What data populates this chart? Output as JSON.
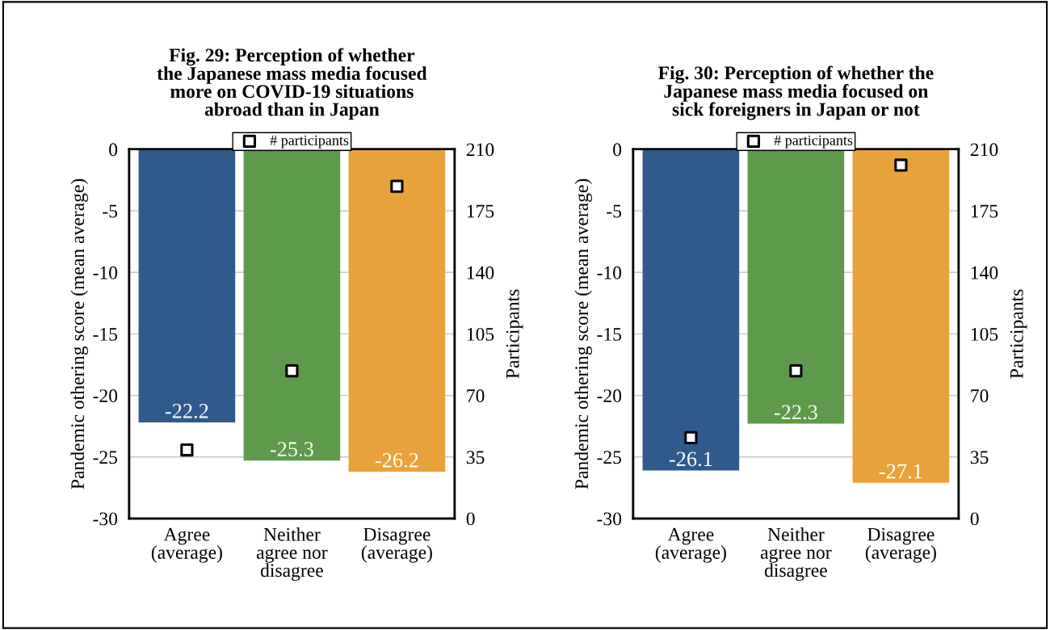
{
  "chart_data": [
    {
      "type": "bar",
      "title": "Fig. 29: Perception of whether\nthe Japanese mass media focused\nmore on COVID-19 situations\nabroad than in Japan",
      "ylabel": "Pandemic othering score (mean average)",
      "y2label": "Participants",
      "categories": [
        "Agree\n(average)",
        "Neither\nagree nor\ndisagree",
        "Disagree\n(average)"
      ],
      "series": [
        {
          "colors": [
            "#2e5a8c",
            "#5e9a4b",
            "#e8a23c"
          ],
          "values": [
            -22.2,
            -25.3,
            -26.2
          ],
          "value_labels": [
            "-22.2",
            "-25.3",
            "-26.2"
          ]
        },
        {
          "type": "scatter",
          "name": "# participants",
          "axis": "y2",
          "color": "#000000",
          "marker": "square",
          "values": [
            39,
            84,
            189
          ]
        }
      ],
      "ylim": [
        -30,
        0
      ],
      "yticks": [
        -30,
        -25,
        -20,
        -15,
        -10,
        -5,
        0
      ],
      "y2lim": [
        0,
        210
      ],
      "y2ticks": [
        0,
        35,
        70,
        105,
        140,
        175,
        210
      ],
      "grid": "y",
      "legend": "top"
    },
    {
      "type": "bar",
      "title": "Fig. 30: Perception of whether the\nJapanese mass media focused on\nsick foreigners in Japan or not",
      "ylabel": "Pandemic othering score (mean average)",
      "y2label": "Participants",
      "categories": [
        "Agree\n(average)",
        "Neither\nagree nor\ndisagree",
        "Disagree\n(average)"
      ],
      "series": [
        {
          "colors": [
            "#2e5a8c",
            "#5e9a4b",
            "#e8a23c"
          ],
          "values": [
            -26.1,
            -22.3,
            -27.1
          ],
          "value_labels": [
            "-26.1",
            "-22.3",
            "-27.1"
          ]
        },
        {
          "type": "scatter",
          "name": "# participants",
          "axis": "y2",
          "color": "#000000",
          "marker": "square",
          "values": [
            46,
            84,
            201
          ]
        }
      ],
      "ylim": [
        -30,
        0
      ],
      "yticks": [
        -30,
        -25,
        -20,
        -15,
        -10,
        -5,
        0
      ],
      "y2lim": [
        0,
        210
      ],
      "y2ticks": [
        0,
        35,
        70,
        105,
        140,
        175,
        210
      ],
      "grid": "y",
      "legend": "top"
    }
  ]
}
